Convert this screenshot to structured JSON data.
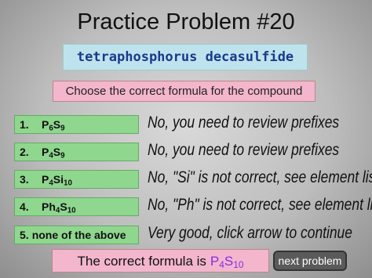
{
  "title": "Practice Problem #20",
  "compound": "tetraphosphorus decasulfide",
  "instruction": "Choose the correct formula for the compound",
  "options": [
    {
      "number": "1.",
      "formula": [
        [
          "P",
          "6"
        ],
        [
          "S",
          "9"
        ]
      ],
      "feedback": "No, you need to review prefixes"
    },
    {
      "number": "2.",
      "formula": [
        [
          "P",
          "4"
        ],
        [
          "S",
          "9"
        ]
      ],
      "feedback": "No, you need to review prefixes"
    },
    {
      "number": "3.",
      "formula": [
        [
          "P",
          "4"
        ],
        [
          "Si",
          "10"
        ]
      ],
      "feedback": "No, \"Si\" is not correct, see element list"
    },
    {
      "number": "4.",
      "formula": [
        [
          "Ph",
          "4"
        ],
        [
          "S",
          "10"
        ]
      ],
      "feedback": "No, \"Ph\" is not correct, see element list"
    },
    {
      "number": "5.",
      "text": "none of the above",
      "feedback": "Very good, click arrow to continue"
    }
  ],
  "answer": {
    "text": "The correct formula is",
    "formula": [
      [
        "P",
        "4"
      ],
      [
        "S",
        "10"
      ]
    ]
  },
  "next_button": "next problem"
}
